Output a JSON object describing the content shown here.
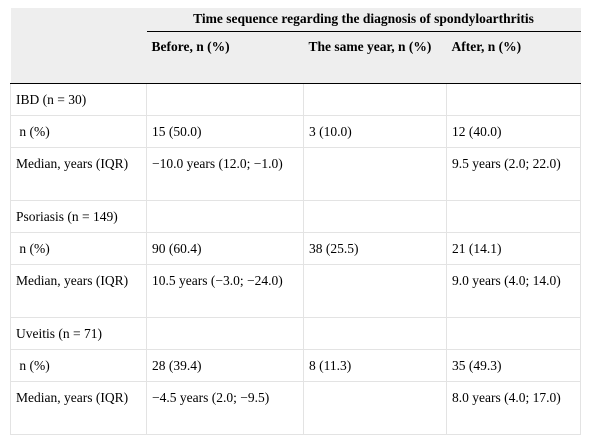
{
  "header": {
    "span_title": "Time sequence regarding the diagnosis of spondyloarthritis",
    "col_before": "Before, n (%)",
    "col_same": "The same year, n (%)",
    "col_after": "After, n (%)"
  },
  "rows": [
    {
      "label": "IBD (n = 30)",
      "before": "",
      "same": "",
      "after": ""
    },
    {
      "label": " n (%)",
      "before": "15 (50.0)",
      "same": "3 (10.0)",
      "after": "12 (40.0)"
    },
    {
      "label": "Median, years (IQR)",
      "before": "−10.0 years (12.0; −1.0)",
      "same": "",
      "after": "9.5 years (2.0; 22.0)"
    },
    {
      "label": "Psoriasis (n = 149)",
      "before": "",
      "same": "",
      "after": ""
    },
    {
      "label": " n (%)",
      "before": "90 (60.4)",
      "same": "38 (25.5)",
      "after": "21 (14.1)"
    },
    {
      "label": "Median, years (IQR)",
      "before": "10.5 years (−3.0; −24.0)",
      "same": "",
      "after": "9.0 years (4.0; 14.0)"
    },
    {
      "label": "Uveitis (n = 71)",
      "before": "",
      "same": "",
      "after": ""
    },
    {
      "label": " n (%)",
      "before": "28 (39.4)",
      "same": "8 (11.3)",
      "after": "35 (49.3)"
    },
    {
      "label": "Median, years (IQR)",
      "before": "−4.5 years (2.0; −9.5)",
      "same": "",
      "after": "8.0 years (4.0; 17.0)"
    }
  ]
}
